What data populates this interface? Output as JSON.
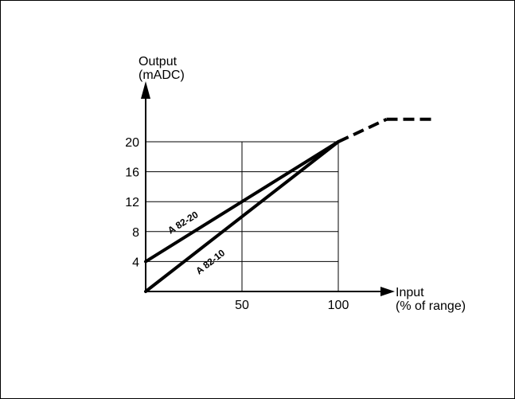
{
  "chart_data": {
    "type": "line",
    "title": "",
    "ylabel": [
      "Output",
      "(mADC)"
    ],
    "xlabel": [
      "Input",
      "(% of range)"
    ],
    "xlim": [
      0,
      100
    ],
    "ylim": [
      0,
      20
    ],
    "x_ticks": [
      50,
      100
    ],
    "y_ticks": [
      4,
      8,
      12,
      16,
      20
    ],
    "grid": true,
    "series": [
      {
        "name": "A 82-20",
        "x": [
          0,
          100
        ],
        "y": [
          4,
          20
        ]
      },
      {
        "name": "A 82-10",
        "x": [
          0,
          100
        ],
        "y": [
          0,
          20
        ]
      }
    ],
    "saturation": {
      "style": "dashed",
      "x": [
        100,
        150
      ],
      "y": [
        20,
        23
      ]
    }
  }
}
